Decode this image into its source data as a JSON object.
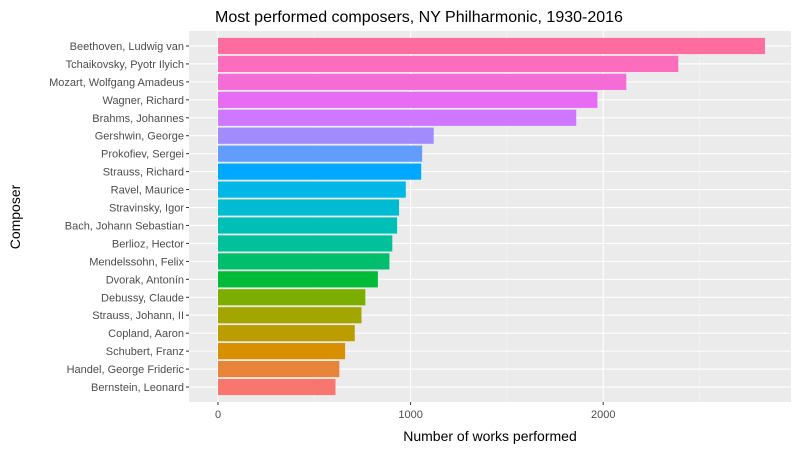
{
  "chart_data": {
    "type": "bar",
    "orientation": "horizontal",
    "title": "Most performed composers, NY Philharmonic, 1930-2016",
    "xlabel": "Number of works performed",
    "ylabel": "Composer",
    "xlim": [
      0,
      2850
    ],
    "xticks": [
      0,
      1000,
      2000
    ],
    "grid": true,
    "legend": "none",
    "categories": [
      "Beethoven, Ludwig van",
      "Tchaikovsky, Pyotr Ilyich",
      "Mozart, Wolfgang Amadeus",
      "Wagner, Richard",
      "Brahms, Johannes",
      "Gershwin, George",
      "Prokofiev, Sergei",
      "Strauss, Richard",
      "Ravel, Maurice",
      "Stravinsky, Igor",
      "Bach, Johann Sebastian",
      "Berlioz, Hector",
      "Mendelssohn, Felix",
      "Dvorak, Antonín",
      "Debussy, Claude",
      "Strauss, Johann, II",
      "Copland, Aaron",
      "Schubert, Franz",
      "Handel, George Frideric",
      "Bernstein, Leonard"
    ],
    "values": [
      2840,
      2390,
      2120,
      1970,
      1860,
      1120,
      1060,
      1055,
      975,
      940,
      930,
      905,
      890,
      830,
      765,
      745,
      710,
      660,
      630,
      610
    ],
    "colors": [
      "#FF6C9E",
      "#FE6CBE",
      "#F66CD7",
      "#E76BF3",
      "#CE77FF",
      "#A28AFF",
      "#619CFF",
      "#00A9FF",
      "#00B7E8",
      "#00BCD2",
      "#00BFB7",
      "#00C19A",
      "#00BE6C",
      "#00BA38",
      "#7CAE00",
      "#A3A500",
      "#BB9D00",
      "#D89000",
      "#E8853A",
      "#F8766D"
    ],
    "panel_background": "#EBEBEB",
    "grid_major_color": "#FFFFFF"
  }
}
